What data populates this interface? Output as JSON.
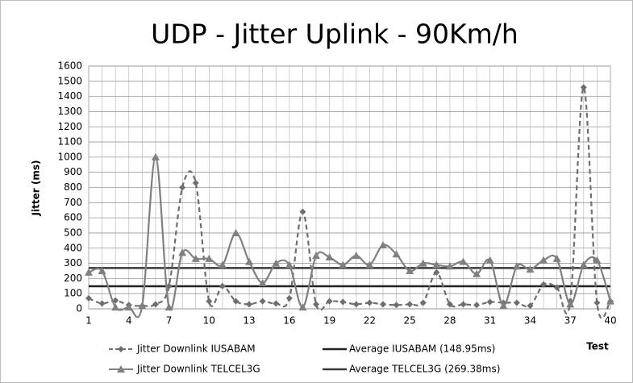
{
  "chart_data": {
    "type": "line",
    "title": "UDP - Jitter Uplink - 90Km/h",
    "y_label": "Jitter (ms)",
    "x_label": "Test",
    "categories": [
      1,
      null,
      null,
      4,
      null,
      null,
      7,
      null,
      null,
      10,
      null,
      null,
      13,
      null,
      null,
      16,
      null,
      null,
      19,
      null,
      null,
      22,
      null,
      null,
      25,
      null,
      null,
      28,
      null,
      null,
      31,
      null,
      null,
      34,
      null,
      null,
      37,
      null,
      null,
      40
    ],
    "series": [
      {
        "name": "Jitter Downlink IUSABAM",
        "color": "#6e6e6e",
        "style": "dashed",
        "marker": "diamond",
        "values": [
          70,
          35,
          55,
          25,
          20,
          30,
          150,
          800,
          830,
          50,
          150,
          50,
          30,
          50,
          35,
          70,
          640,
          30,
          50,
          45,
          30,
          40,
          30,
          25,
          30,
          40,
          240,
          30,
          30,
          25,
          45,
          40,
          40,
          20,
          160,
          140,
          50,
          1460,
          40,
          50
        ]
      },
      {
        "name": "Jitter Downlink TELCEL3G",
        "color": "#808080",
        "style": "solid",
        "marker": "triangle",
        "values": [
          240,
          250,
          10,
          10,
          20,
          1000,
          10,
          370,
          330,
          330,
          290,
          500,
          310,
          170,
          300,
          290,
          10,
          350,
          340,
          290,
          350,
          290,
          420,
          360,
          250,
          300,
          290,
          280,
          310,
          230,
          320,
          20,
          280,
          260,
          320,
          330,
          30,
          290,
          320,
          50
        ]
      }
    ],
    "averages": [
      {
        "name": "Average IUSABAM (148.95ms)",
        "color": "#222222",
        "value": 148.95
      },
      {
        "name": "Average TELCEL3G (269.38ms)",
        "color": "#3a3a3a",
        "value": 269.38
      }
    ],
    "ylim": [
      0,
      1600
    ],
    "yticks": [
      0,
      100,
      200,
      300,
      400,
      500,
      600,
      700,
      800,
      900,
      1000,
      1100,
      1200,
      1300,
      1400,
      1500,
      1600
    ],
    "grid": true,
    "smooth": true,
    "legend": "bottom"
  }
}
